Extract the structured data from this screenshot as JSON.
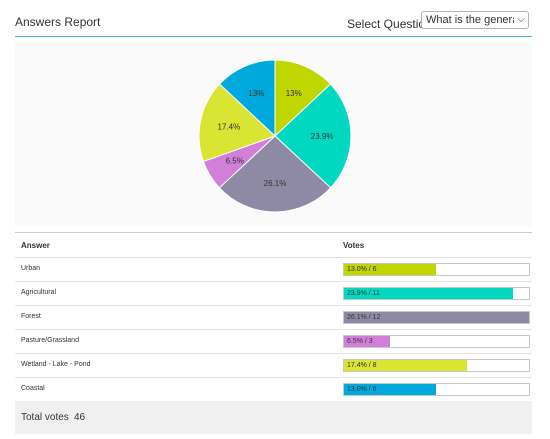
{
  "header": {
    "title": "Answers Report",
    "select_label": "Select Question:",
    "question_value": "What is the general type"
  },
  "table": {
    "col_answer": "Answer",
    "col_votes": "Votes"
  },
  "chart_data": {
    "type": "pie",
    "slices": [
      {
        "name": "Urban",
        "value": 13.0,
        "label": "13%",
        "votes": 6,
        "color": "#bfd600"
      },
      {
        "name": "Agricultural",
        "value": 23.9,
        "label": "23.9%",
        "votes": 11,
        "color": "#00d9c0"
      },
      {
        "name": "Forest",
        "value": 26.1,
        "label": "26.1%",
        "votes": 12,
        "color": "#8e89a4"
      },
      {
        "name": "Pasture/Grassland",
        "value": 6.5,
        "label": "6.5%",
        "votes": 3,
        "color": "#d17fd9"
      },
      {
        "name": "Wetland - Lake - Pond",
        "value": 17.4,
        "label": "17.4%",
        "votes": 8,
        "color": "#d9e433"
      },
      {
        "name": "Coastal",
        "value": 13.0,
        "label": "13%",
        "votes": 6,
        "color": "#00a9dc"
      }
    ]
  },
  "rows": [
    {
      "answer": "Urban",
      "bar_text": "13.0% / 6",
      "pct": 13.0,
      "color": "#bfd600"
    },
    {
      "answer": "Agricultural",
      "bar_text": "23.9% / 11",
      "pct": 23.9,
      "color": "#00d9c0"
    },
    {
      "answer": "Forest",
      "bar_text": "26.1% / 12",
      "pct": 26.1,
      "color": "#8e89a4"
    },
    {
      "answer": "Pasture/Grassland",
      "bar_text": "6.5% / 3",
      "pct": 6.5,
      "color": "#d17fd9"
    },
    {
      "answer": "Wetland - Lake - Pond",
      "bar_text": "17.4% / 8",
      "pct": 17.4,
      "color": "#d9e433"
    },
    {
      "answer": "Coastal",
      "bar_text": "13.0% / 6",
      "pct": 13.0,
      "color": "#00a9dc"
    }
  ],
  "footer": {
    "total_label": "Total votes",
    "total_value": "46"
  }
}
